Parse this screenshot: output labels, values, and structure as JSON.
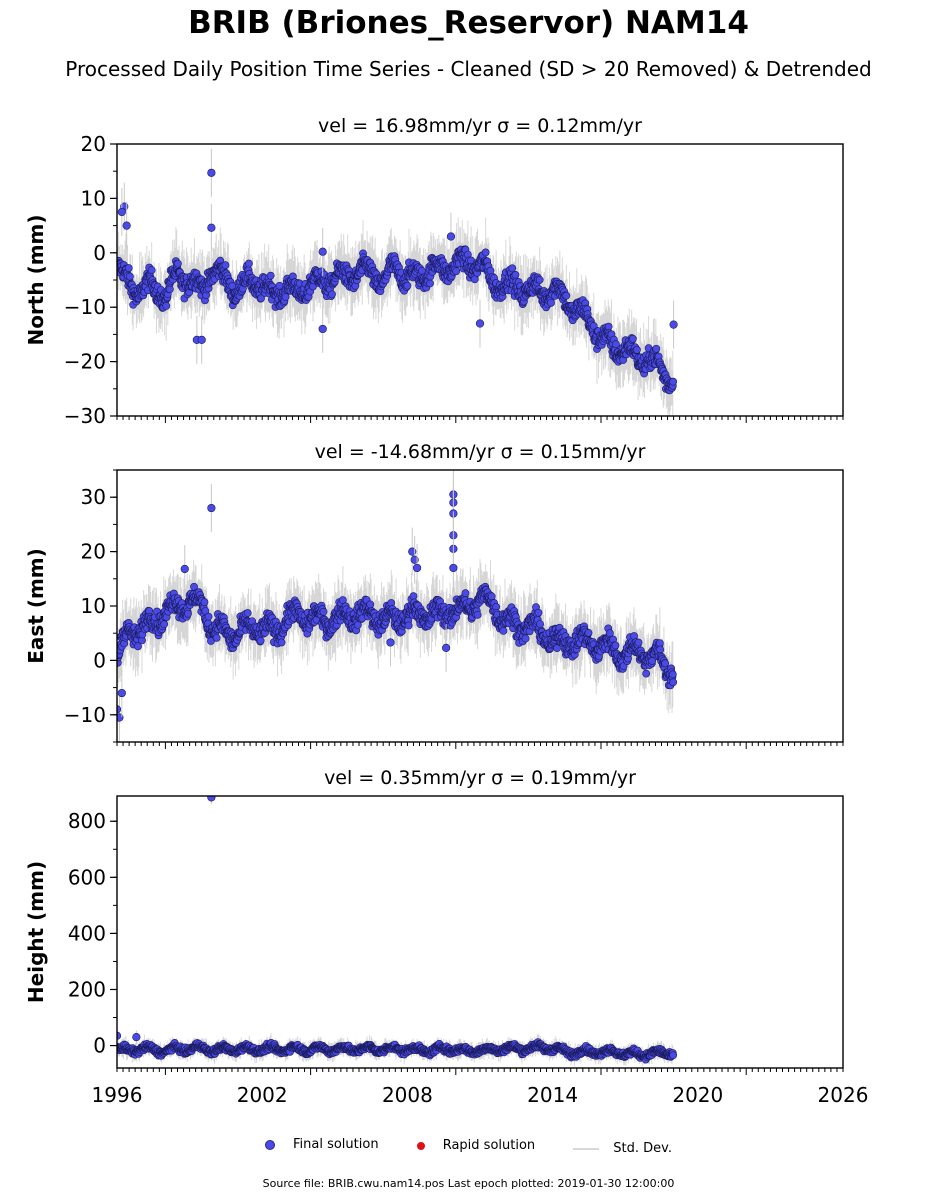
{
  "title": "BRIB (Briones_Reservor) NAM14",
  "subtitle": "Processed Daily Position Time Series - Cleaned (SD > 20 Removed) & Detrended",
  "legend": {
    "final": "Final solution",
    "rapid": "Rapid solution",
    "std": "Std. Dev."
  },
  "footer": "Source file: BRIB.cwu.nam14.pos  Last epoch plotted: 2019-01-30 12:00:00",
  "colors": {
    "final_fill": "#4a4ae6",
    "final_edge": "#1a1a5a",
    "rapid": "#e0101a",
    "stddev": "#c8c8c8"
  },
  "chart_data": [
    {
      "type": "scatter",
      "title": "vel = 16.98mm/yr   σ = 0.12mm/yr",
      "ylabel": "North (mm)",
      "xlabel": "",
      "xlim": [
        1996,
        2026
      ],
      "ylim": [
        -30,
        20
      ],
      "yticks": [
        -30,
        -20,
        -10,
        0,
        10,
        20
      ],
      "ytick_labels": [
        "−30",
        "−20",
        "−10",
        "0",
        "10",
        "20"
      ],
      "series": [
        {
          "name": "Final solution",
          "x": [
            1996.0,
            1996.3,
            1996.6,
            1997.0,
            1997.5,
            1998.0,
            1998.5,
            1999.0,
            1999.5,
            1999.9,
            2000.5,
            2001.0,
            2001.5,
            2002.0,
            2002.5,
            2003.0,
            2003.5,
            2004.0,
            2004.5,
            2005.0,
            2005.5,
            2006.0,
            2006.5,
            2007.0,
            2007.5,
            2008.0,
            2008.5,
            2009.0,
            2009.5,
            2010.0,
            2010.5,
            2011.0,
            2011.5,
            2012.0,
            2012.5,
            2013.0,
            2013.5,
            2014.0,
            2014.5,
            2015.0,
            2015.5,
            2016.0,
            2016.5,
            2017.0,
            2017.5,
            2018.0,
            2018.5,
            2019.0
          ],
          "y": [
            -2,
            -5,
            -6,
            -7,
            -6,
            -8,
            -4,
            -5,
            -7,
            -3,
            -5,
            -7,
            -5,
            -6,
            -8,
            -6,
            -8,
            -5,
            -6,
            -4,
            -5,
            -3,
            -4,
            -5,
            -3,
            -4,
            -5,
            -2,
            -4,
            -1,
            -3,
            -1,
            -6,
            -5,
            -7,
            -6,
            -8,
            -6,
            -9,
            -10,
            -13,
            -15,
            -18,
            -17,
            -20,
            -19,
            -22,
            -23
          ],
          "scatter": 2.2
        }
      ],
      "outliers": [
        {
          "x": 1996.3,
          "y": 8.5
        },
        {
          "x": 1996.2,
          "y": 7.5
        },
        {
          "x": 1996.4,
          "y": 5.0
        },
        {
          "x": 1999.9,
          "y": 14.7
        },
        {
          "x": 1999.9,
          "y": 4.6
        },
        {
          "x": 1999.3,
          "y": -16.0
        },
        {
          "x": 1999.5,
          "y": -16.0
        },
        {
          "x": 2004.5,
          "y": -14.0
        },
        {
          "x": 2011.0,
          "y": -13.0
        },
        {
          "x": 2019.0,
          "y": -13.2
        },
        {
          "x": 2004.5,
          "y": 0.2
        },
        {
          "x": 2009.8,
          "y": 3.0
        }
      ]
    },
    {
      "type": "scatter",
      "title": "vel = -14.68mm/yr   σ = 0.15mm/yr",
      "ylabel": "East (mm)",
      "xlabel": "",
      "xlim": [
        1996,
        2026
      ],
      "ylim": [
        -15,
        35
      ],
      "yticks": [
        -10,
        0,
        10,
        20,
        30
      ],
      "ytick_labels": [
        "−10",
        "0",
        "10",
        "20",
        "30"
      ],
      "series": [
        {
          "name": "Final solution",
          "x": [
            1996.0,
            1996.2,
            1996.5,
            1997.0,
            1997.5,
            1998.0,
            1998.5,
            1999.0,
            1999.5,
            2000.0,
            2000.5,
            2001.0,
            2001.5,
            2002.0,
            2002.5,
            2003.0,
            2003.5,
            2004.0,
            2004.5,
            2005.0,
            2005.5,
            2006.0,
            2006.5,
            2007.0,
            2007.5,
            2008.0,
            2008.6,
            2009.0,
            2009.5,
            2010.0,
            2010.5,
            2011.0,
            2011.5,
            2012.0,
            2012.5,
            2013.0,
            2013.5,
            2014.0,
            2014.5,
            2015.0,
            2015.5,
            2016.0,
            2016.5,
            2017.0,
            2017.5,
            2018.0,
            2018.5,
            2019.0
          ],
          "y": [
            0,
            3,
            5,
            6,
            7,
            9,
            10,
            11,
            10,
            6,
            5,
            5,
            6,
            6,
            5,
            8,
            8,
            8,
            7,
            8,
            8,
            9,
            8,
            8,
            7,
            9,
            8,
            9,
            8,
            10,
            9,
            12,
            10,
            8,
            6,
            7,
            5,
            4,
            3,
            4,
            3,
            3,
            2,
            1,
            2,
            1,
            0,
            -2
          ],
          "scatter": 2.2
        }
      ],
      "outliers": [
        {
          "x": 1996.1,
          "y": -10.5
        },
        {
          "x": 1996.0,
          "y": -9.0
        },
        {
          "x": 1996.2,
          "y": -6.0
        },
        {
          "x": 1999.9,
          "y": 28.0
        },
        {
          "x": 2008.2,
          "y": 20.0
        },
        {
          "x": 2008.3,
          "y": 18.5
        },
        {
          "x": 2008.4,
          "y": 17.0
        },
        {
          "x": 2009.9,
          "y": 30.5
        },
        {
          "x": 2009.9,
          "y": 29.0
        },
        {
          "x": 2009.9,
          "y": 27.0
        },
        {
          "x": 2009.9,
          "y": 23.0
        },
        {
          "x": 2009.9,
          "y": 20.5
        },
        {
          "x": 2009.9,
          "y": 17.0
        },
        {
          "x": 2007.3,
          "y": 3.3
        },
        {
          "x": 2009.6,
          "y": 2.3
        },
        {
          "x": 1998.8,
          "y": 16.8
        }
      ]
    },
    {
      "type": "scatter",
      "title": "vel = 0.35mm/yr   σ = 0.19mm/yr",
      "ylabel": "Height (mm)",
      "xlabel": "",
      "xlim": [
        1996,
        2026
      ],
      "ylim": [
        -80,
        890
      ],
      "yticks": [
        0,
        200,
        400,
        600,
        800
      ],
      "ytick_labels": [
        "0",
        "200",
        "400",
        "600",
        "800"
      ],
      "xticks": [
        1996,
        2002,
        2008,
        2014,
        2020,
        2026
      ],
      "xtick_labels": [
        "1996",
        "2002",
        "2008",
        "2014",
        "2020",
        "2026"
      ],
      "series": [
        {
          "name": "Final solution",
          "x": [
            1996.0,
            1996.5,
            1997.0,
            1997.5,
            1998.0,
            1998.5,
            1999.0,
            1999.5,
            2000.0,
            2000.5,
            2001.0,
            2001.5,
            2002.0,
            2002.5,
            2003.0,
            2003.5,
            2004.0,
            2004.5,
            2005.0,
            2005.5,
            2006.0,
            2006.5,
            2007.0,
            2007.5,
            2008.0,
            2008.6,
            2009.0,
            2009.5,
            2010.0,
            2010.5,
            2011.0,
            2011.5,
            2012.0,
            2012.5,
            2013.0,
            2013.5,
            2014.0,
            2014.5,
            2015.0,
            2015.5,
            2016.0,
            2016.5,
            2017.0,
            2017.5,
            2018.0,
            2018.5,
            2019.0
          ],
          "y": [
            -10,
            -20,
            -10,
            -15,
            -20,
            -10,
            -15,
            -5,
            -20,
            -10,
            -15,
            -10,
            -15,
            -10,
            -15,
            -10,
            -15,
            -10,
            -15,
            -10,
            -15,
            -10,
            -15,
            -10,
            -15,
            -15,
            -20,
            -10,
            -15,
            -20,
            -15,
            -15,
            -10,
            -10,
            -10,
            -5,
            -10,
            -20,
            -25,
            -20,
            -25,
            -20,
            -30,
            -30,
            -30,
            -25,
            -30
          ],
          "scatter": 12
        }
      ],
      "outliers": [
        {
          "x": 1999.9,
          "y": 885
        },
        {
          "x": 1996.0,
          "y": 35
        },
        {
          "x": 1996.8,
          "y": 30
        }
      ]
    }
  ]
}
